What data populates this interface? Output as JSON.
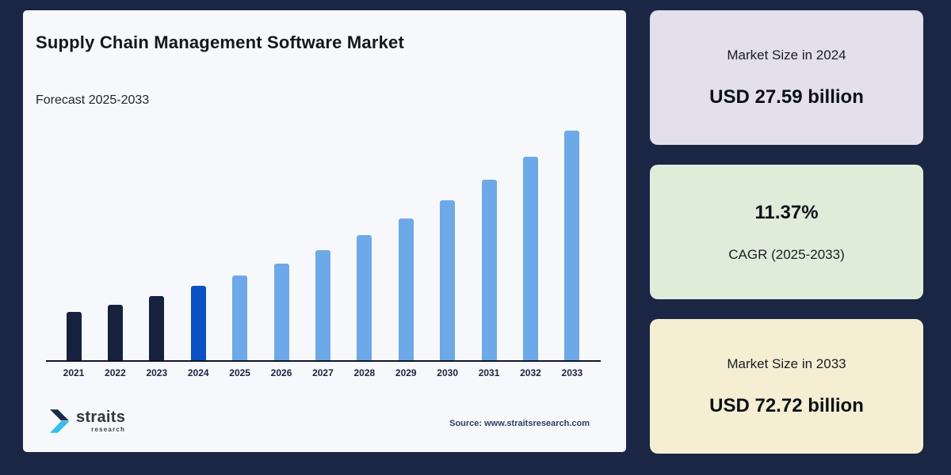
{
  "header": {
    "title": "Supply Chain Management Software Market",
    "subtitle": "Forecast 2025-2033"
  },
  "chart_data": {
    "type": "bar",
    "title": "Supply Chain Management Software Market",
    "subtitle": "Forecast 2025-2033",
    "unit": "USD billion",
    "categories": [
      "2021",
      "2022",
      "2023",
      "2024",
      "2025",
      "2026",
      "2027",
      "2028",
      "2029",
      "2030",
      "2031",
      "2032",
      "2033"
    ],
    "values": [
      19.97,
      22.24,
      24.77,
      27.59,
      30.73,
      34.22,
      38.11,
      42.45,
      47.27,
      52.65,
      58.63,
      65.3,
      72.72
    ],
    "value_notes": "27.59 (2024) and 72.72 (2033) stated on infographic; other years estimated from bar heights and 11.37% CAGR",
    "roles": [
      "historical",
      "historical",
      "historical",
      "current",
      "forecast",
      "forecast",
      "forecast",
      "forecast",
      "forecast",
      "forecast",
      "forecast",
      "forecast",
      "forecast"
    ],
    "colors": {
      "historical": "#16213e",
      "current": "#0b51c3",
      "forecast": "#6da9e8"
    },
    "axis_color": "#0d1526",
    "gridlines": false,
    "legend": "none",
    "y_axis_labels": false
  },
  "stats": [
    {
      "label": "Market Size in 2024",
      "value": "USD 27.59 billion",
      "bg": "#e3dfeb"
    },
    {
      "label": "CAGR (2025-2033)",
      "value": "11.37%",
      "bg": "#e0ecda"
    },
    {
      "label": "Market Size in 2033",
      "value": "USD 72.72 billion",
      "bg": "#f5eed2"
    }
  ],
  "footer": {
    "brand_name": "straits",
    "brand_sub": "research",
    "source": "Source: www.straitsresearch.com"
  },
  "page": {
    "background": "#1b2645",
    "card_background": "#f7f8fb",
    "logo_dark": "#1b2a4a",
    "logo_cyan": "#35bdee"
  }
}
